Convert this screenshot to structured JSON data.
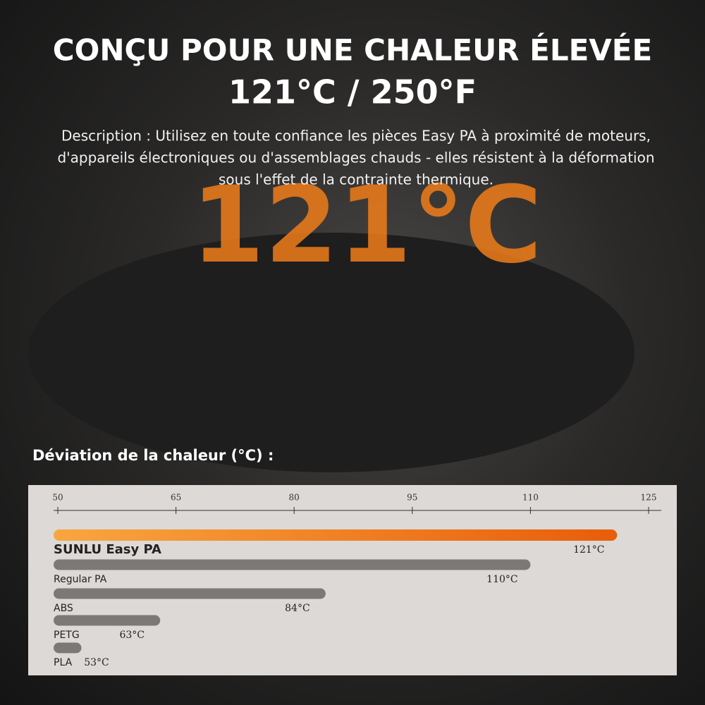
{
  "header": {
    "title": "CONÇU POUR UNE CHALEUR ÉLEVÉE",
    "subtitle": "121°C / 250°F",
    "description": [
      "Description : Utilisez en toute confiance les pièces Easy PA à proximité de moteurs,",
      "d'appareils électroniques ou d'assemblages chauds - elles résistent à la déformation",
      "sous l'effet de la contrainte thermique."
    ]
  },
  "background_text": "121°C",
  "chart_data": {
    "type": "bar",
    "orientation": "horizontal",
    "title": "Déviation de la chaleur (°C) :",
    "categories": [
      "SUNLU Easy PA",
      "Regular PA",
      "ABS",
      "PETG",
      "PLA"
    ],
    "values": [
      121,
      110,
      84,
      63,
      53
    ],
    "value_labels": [
      "121°C",
      "110°C",
      "84°C",
      "63°C",
      "53°C"
    ],
    "colors": [
      "#f47b16",
      "#7b7977",
      "#7b7977",
      "#7b7977",
      "#7b7977"
    ],
    "xlim": [
      50,
      125
    ],
    "xticks": [
      50,
      65,
      80,
      95,
      110,
      125
    ]
  }
}
